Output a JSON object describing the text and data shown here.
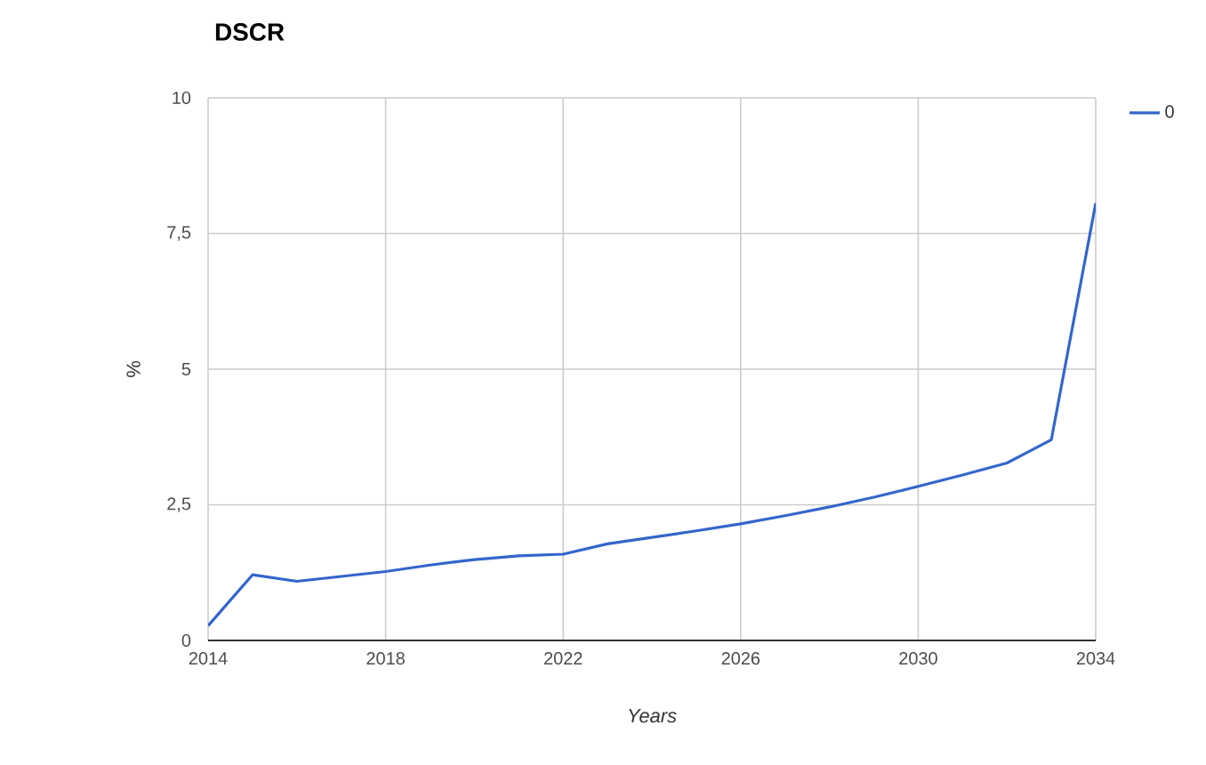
{
  "chart_data": {
    "type": "line",
    "title": "DSCR",
    "xlabel": "Years",
    "ylabel": "%",
    "x": [
      2014,
      2015,
      2016,
      2017,
      2018,
      2019,
      2020,
      2021,
      2022,
      2023,
      2024,
      2025,
      2026,
      2027,
      2028,
      2029,
      2030,
      2031,
      2032,
      2033,
      2034
    ],
    "series": [
      {
        "name": "0",
        "color": "#3366cc",
        "values": [
          0.27,
          1.21,
          1.09,
          1.18,
          1.27,
          1.39,
          1.49,
          1.56,
          1.59,
          1.78,
          1.9,
          2.02,
          2.15,
          2.3,
          2.46,
          2.64,
          2.84,
          3.05,
          3.27,
          3.7,
          8.06
        ]
      }
    ],
    "xlim": [
      2014,
      2034
    ],
    "xticks": [
      2014,
      2018,
      2022,
      2026,
      2030,
      2034
    ],
    "ylim": [
      0,
      10
    ],
    "yticks": [
      0,
      {
        "value": 2.5,
        "label": "2,5"
      },
      5,
      {
        "value": 7.5,
        "label": "7,5"
      },
      10
    ],
    "grid": true,
    "legend": "top right",
    "marker": "none",
    "line_style": "solid"
  }
}
